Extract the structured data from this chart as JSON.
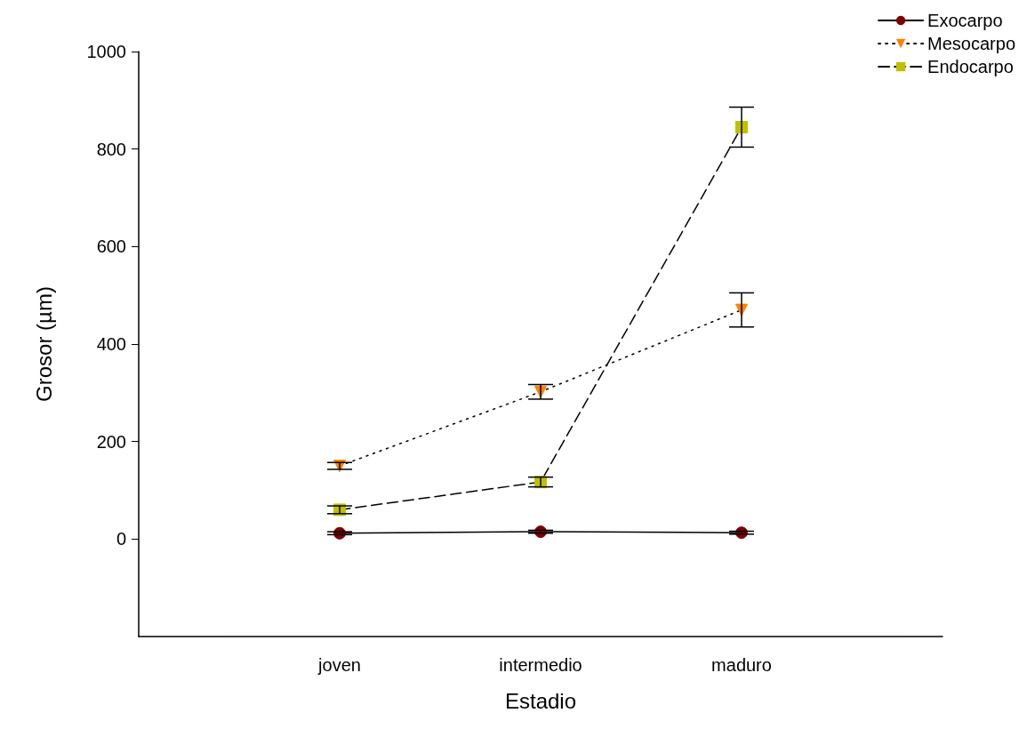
{
  "chart_data": {
    "type": "line",
    "xlabel": "Estadio",
    "ylabel": "Grosor (µm)",
    "categories": [
      null,
      "joven",
      "intermedio",
      "maduro",
      null
    ],
    "ylim": [
      -200,
      1000
    ],
    "yticks": [
      0,
      200,
      400,
      600,
      800,
      1000
    ],
    "grid": false,
    "legend": "top right",
    "series": [
      {
        "name": "Exocarpo",
        "color": "#800000",
        "marker": "circle",
        "line_style": "solid",
        "values": [
          null,
          12,
          15,
          13,
          null
        ],
        "errors": [
          null,
          3,
          3,
          3,
          null
        ]
      },
      {
        "name": "Mesocarpo",
        "color": "#ff8000",
        "marker": "triangle",
        "line_style": "dotted",
        "values": [
          null,
          150,
          302,
          470,
          null
        ],
        "errors": [
          null,
          7,
          15,
          35,
          null
        ]
      },
      {
        "name": "Endocarpo",
        "color": "#c0c000",
        "marker": "square",
        "line_style": "dashed",
        "values": [
          null,
          60,
          117,
          845,
          null
        ],
        "errors": [
          null,
          8,
          10,
          41,
          null
        ]
      }
    ]
  }
}
